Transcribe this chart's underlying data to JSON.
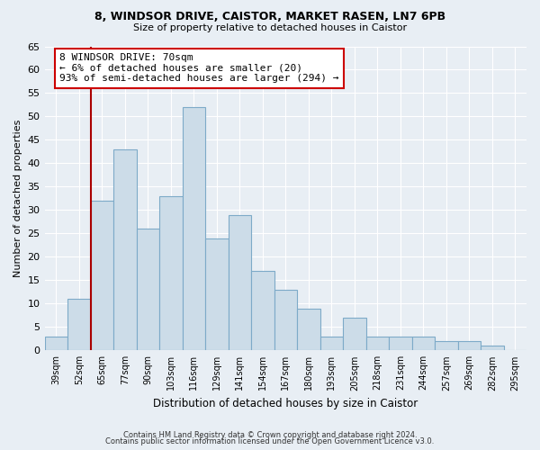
{
  "title1": "8, WINDSOR DRIVE, CAISTOR, MARKET RASEN, LN7 6PB",
  "title2": "Size of property relative to detached houses in Caistor",
  "xlabel": "Distribution of detached houses by size in Caistor",
  "ylabel": "Number of detached properties",
  "categories": [
    "39sqm",
    "52sqm",
    "65sqm",
    "77sqm",
    "90sqm",
    "103sqm",
    "116sqm",
    "129sqm",
    "141sqm",
    "154sqm",
    "167sqm",
    "180sqm",
    "193sqm",
    "205sqm",
    "218sqm",
    "231sqm",
    "244sqm",
    "257sqm",
    "269sqm",
    "282sqm",
    "295sqm"
  ],
  "values": [
    3,
    11,
    32,
    43,
    26,
    33,
    52,
    24,
    29,
    17,
    13,
    9,
    3,
    7,
    3,
    3,
    3,
    2,
    2,
    1,
    0
  ],
  "bar_color": "#ccdce8",
  "bar_edge_color": "#7daac8",
  "highlight_color": "#aa0000",
  "annotation_title": "8 WINDSOR DRIVE: 70sqm",
  "annotation_line1": "← 6% of detached houses are smaller (20)",
  "annotation_line2": "93% of semi-detached houses are larger (294) →",
  "annotation_box_color": "#ffffff",
  "annotation_box_edge": "#cc0000",
  "ylim": [
    0,
    65
  ],
  "yticks": [
    0,
    5,
    10,
    15,
    20,
    25,
    30,
    35,
    40,
    45,
    50,
    55,
    60,
    65
  ],
  "footnote1": "Contains HM Land Registry data © Crown copyright and database right 2024.",
  "footnote2": "Contains public sector information licensed under the Open Government Licence v3.0.",
  "bg_color": "#e8eef4",
  "grid_color": "#ffffff"
}
